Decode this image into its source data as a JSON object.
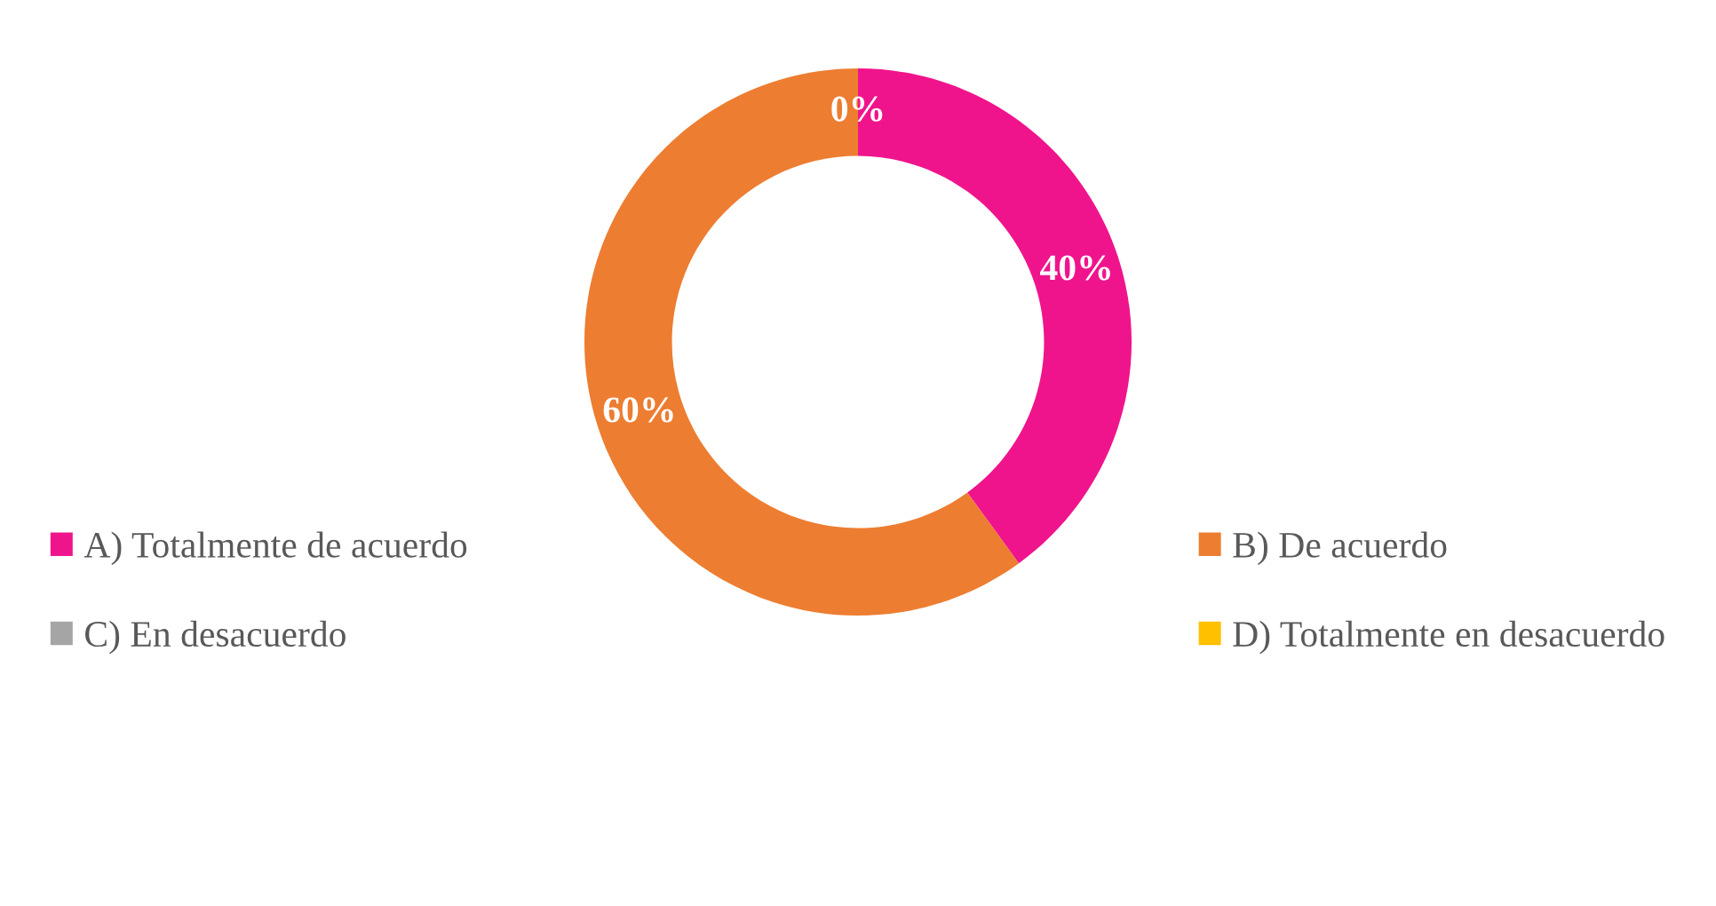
{
  "chart_data": {
    "type": "donut",
    "categories": [
      "A) Totalmente de acuerdo",
      "B) De acuerdo",
      "C) En desacuerdo",
      "D) Totalmente en desacuerdo"
    ],
    "values": [
      40,
      60,
      0,
      0
    ],
    "colors": [
      "#f0148c",
      "#ed7d31",
      "#a5a5a5",
      "#ffc000"
    ],
    "value_labels": [
      "40%",
      "60%",
      "0%",
      null
    ],
    "legend": "bottom"
  }
}
